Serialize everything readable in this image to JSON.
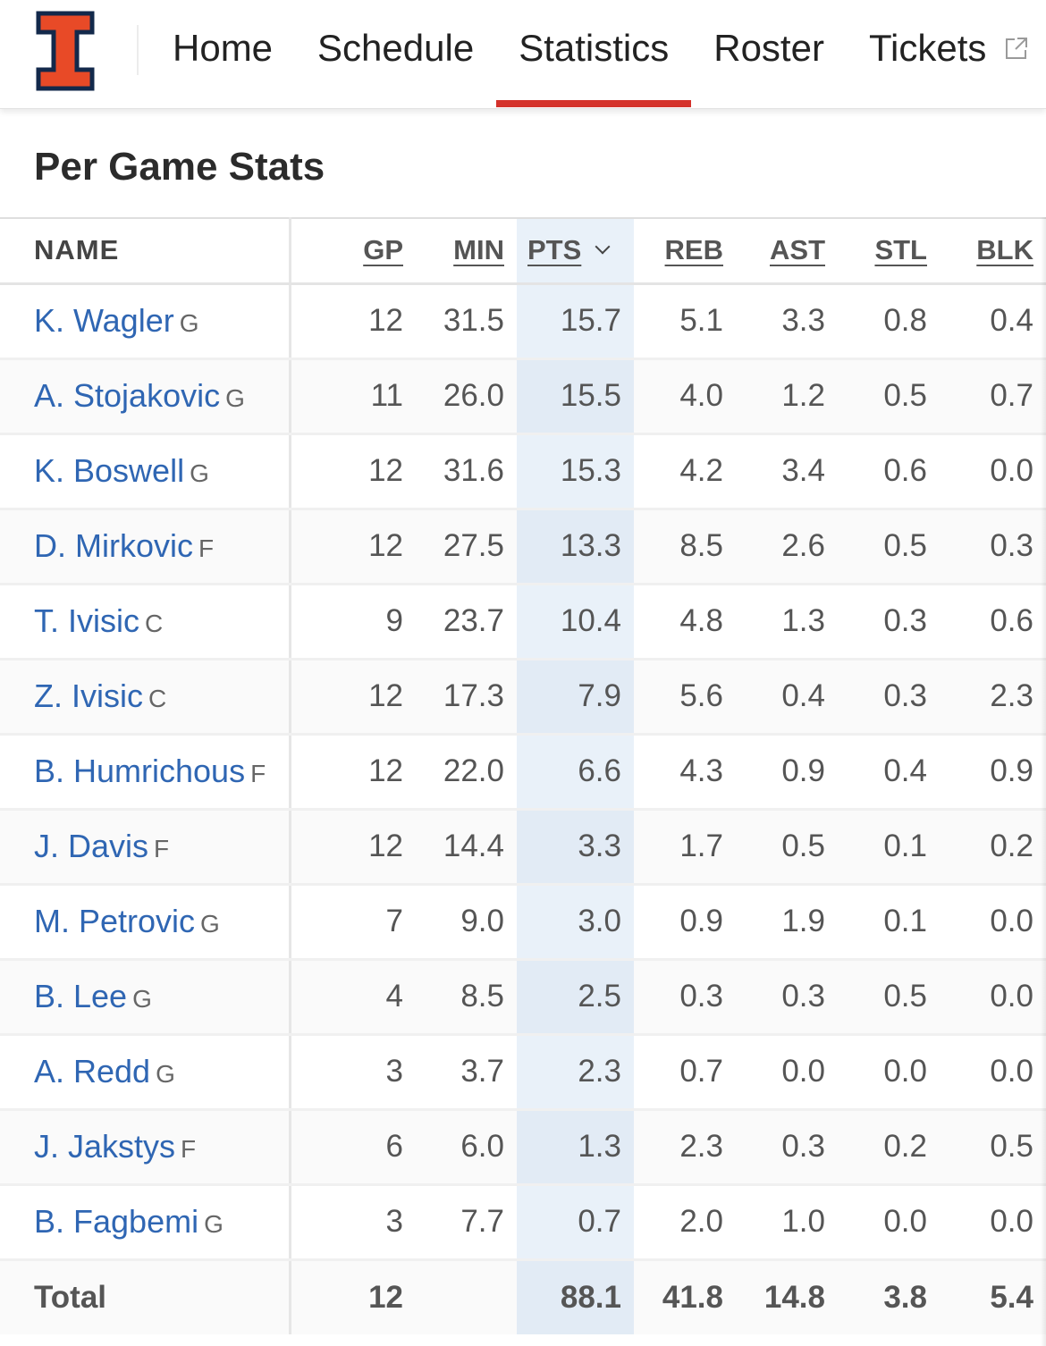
{
  "nav": {
    "items": [
      {
        "label": "Home",
        "active": false
      },
      {
        "label": "Schedule",
        "active": false
      },
      {
        "label": "Statistics",
        "active": true
      },
      {
        "label": "Roster",
        "active": false
      },
      {
        "label": "Tickets",
        "active": false,
        "external": true
      }
    ],
    "logo": "illinois-block-i-logo",
    "colors": {
      "accent": "#d4322b",
      "logo_orange": "#e84a27",
      "logo_navy": "#13294b",
      "link": "#2f66b3"
    }
  },
  "page": {
    "title": "Per Game Stats"
  },
  "table": {
    "columns": {
      "name": "NAME",
      "gp": "GP",
      "min": "MIN",
      "pts": "PTS",
      "reb": "REB",
      "ast": "AST",
      "stl": "STL",
      "blk": "BLK"
    },
    "sorted_by": "PTS",
    "rows": [
      {
        "name": "K. Wagler",
        "pos": "G",
        "gp": "12",
        "min": "31.5",
        "pts": "15.7",
        "reb": "5.1",
        "ast": "3.3",
        "stl": "0.8",
        "blk": "0.4"
      },
      {
        "name": "A. Stojakovic",
        "pos": "G",
        "gp": "11",
        "min": "26.0",
        "pts": "15.5",
        "reb": "4.0",
        "ast": "1.2",
        "stl": "0.5",
        "blk": "0.7"
      },
      {
        "name": "K. Boswell",
        "pos": "G",
        "gp": "12",
        "min": "31.6",
        "pts": "15.3",
        "reb": "4.2",
        "ast": "3.4",
        "stl": "0.6",
        "blk": "0.0"
      },
      {
        "name": "D. Mirkovic",
        "pos": "F",
        "gp": "12",
        "min": "27.5",
        "pts": "13.3",
        "reb": "8.5",
        "ast": "2.6",
        "stl": "0.5",
        "blk": "0.3"
      },
      {
        "name": "T. Ivisic",
        "pos": "C",
        "gp": "9",
        "min": "23.7",
        "pts": "10.4",
        "reb": "4.8",
        "ast": "1.3",
        "stl": "0.3",
        "blk": "0.6"
      },
      {
        "name": "Z. Ivisic",
        "pos": "C",
        "gp": "12",
        "min": "17.3",
        "pts": "7.9",
        "reb": "5.6",
        "ast": "0.4",
        "stl": "0.3",
        "blk": "2.3"
      },
      {
        "name": "B. Humrichous",
        "pos": "F",
        "gp": "12",
        "min": "22.0",
        "pts": "6.6",
        "reb": "4.3",
        "ast": "0.9",
        "stl": "0.4",
        "blk": "0.9"
      },
      {
        "name": "J. Davis",
        "pos": "F",
        "gp": "12",
        "min": "14.4",
        "pts": "3.3",
        "reb": "1.7",
        "ast": "0.5",
        "stl": "0.1",
        "blk": "0.2"
      },
      {
        "name": "M. Petrovic",
        "pos": "G",
        "gp": "7",
        "min": "9.0",
        "pts": "3.0",
        "reb": "0.9",
        "ast": "1.9",
        "stl": "0.1",
        "blk": "0.0"
      },
      {
        "name": "B. Lee",
        "pos": "G",
        "gp": "4",
        "min": "8.5",
        "pts": "2.5",
        "reb": "0.3",
        "ast": "0.3",
        "stl": "0.5",
        "blk": "0.0"
      },
      {
        "name": "A. Redd",
        "pos": "G",
        "gp": "3",
        "min": "3.7",
        "pts": "2.3",
        "reb": "0.7",
        "ast": "0.0",
        "stl": "0.0",
        "blk": "0.0"
      },
      {
        "name": "J. Jakstys",
        "pos": "F",
        "gp": "6",
        "min": "6.0",
        "pts": "1.3",
        "reb": "2.3",
        "ast": "0.3",
        "stl": "0.2",
        "blk": "0.5"
      },
      {
        "name": "B. Fagbemi",
        "pos": "G",
        "gp": "3",
        "min": "7.7",
        "pts": "0.7",
        "reb": "2.0",
        "ast": "1.0",
        "stl": "0.0",
        "blk": "0.0"
      }
    ],
    "total": {
      "label": "Total",
      "gp": "12",
      "min": "",
      "pts": "88.1",
      "reb": "41.8",
      "ast": "14.8",
      "stl": "3.8",
      "blk": "5.4"
    }
  }
}
